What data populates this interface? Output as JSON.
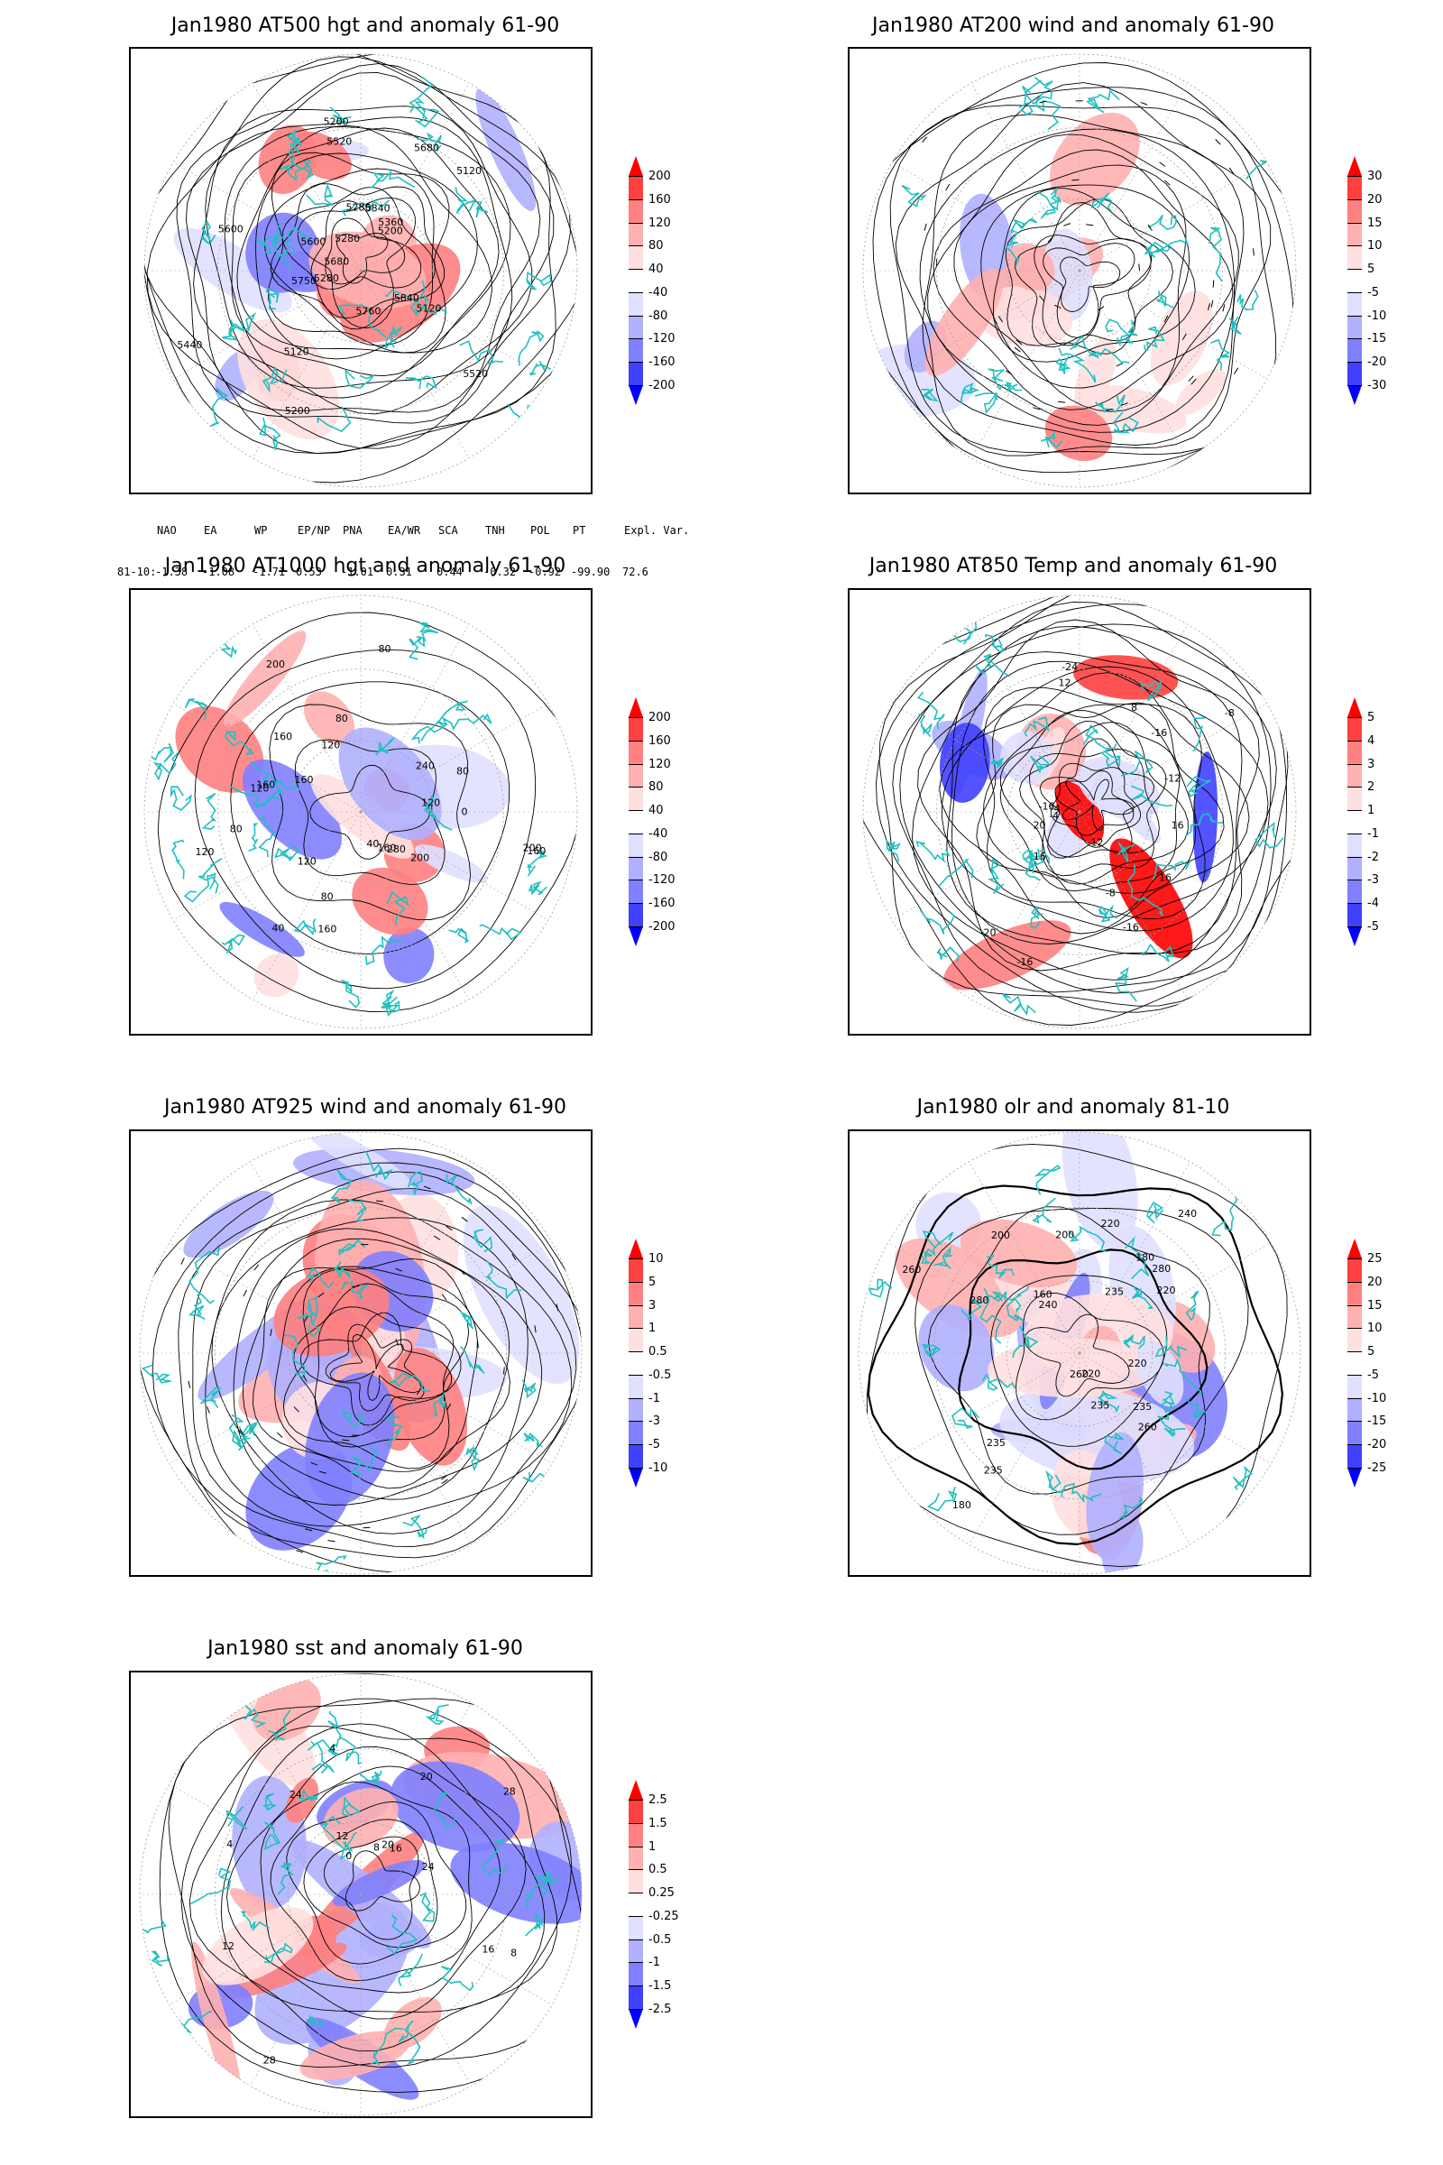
{
  "panels": [
    {
      "title": "Jan1980 AT500 hgt and anomaly 61-90",
      "colorbar": [
        "200",
        "160",
        "120",
        "80",
        "40",
        "-40",
        "-80",
        "-120",
        "-160",
        "-200"
      ],
      "contour_labels": [
        "5840",
        "5750",
        "5680",
        "5600",
        "5520",
        "5280",
        "5200",
        "5120",
        "5280",
        "5200",
        "5120",
        "5120",
        "5200",
        "5280",
        "5360",
        "5440",
        "5520",
        "5600",
        "5680",
        "5760",
        "5840"
      ]
    },
    {
      "title": "Jan1980 AT200 wind and anomaly 61-90",
      "colorbar": [
        "30",
        "20",
        "15",
        "10",
        "5",
        "-5",
        "-10",
        "-15",
        "-20",
        "-30"
      ],
      "contour_labels": []
    },
    {
      "title": "Jan1980 AT1000 hgt and anomaly 61-90",
      "colorbar": [
        "200",
        "160",
        "120",
        "80",
        "40",
        "-40",
        "-80",
        "-120",
        "-160",
        "-200"
      ],
      "contour_labels": [
        "80",
        "120",
        "40",
        "0",
        "80",
        "200",
        "280",
        "80",
        "120",
        "200",
        "160",
        "240",
        "160",
        "160",
        "40",
        "80",
        "160",
        "200",
        "120",
        "160",
        "120",
        "120",
        "160",
        "80"
      ]
    },
    {
      "title": "Jan1980 AT850 Temp and anomaly 61-90",
      "colorbar": [
        "5",
        "4",
        "3",
        "2",
        "1",
        "-1",
        "-2",
        "-3",
        "-4",
        "-5"
      ],
      "contour_labels": [
        "-16",
        "-8",
        "-12",
        "-4",
        "-16",
        "-24",
        "-20",
        "-12",
        "-16",
        "-8",
        "-4",
        "8",
        "16",
        "12",
        "16",
        "-16",
        "16",
        "20"
      ]
    },
    {
      "title": "Jan1980 AT925 wind and anomaly 61-90",
      "colorbar": [
        "10",
        "5",
        "3",
        "1",
        "0.5",
        "-0.5",
        "-1",
        "-3",
        "-5",
        "-10"
      ],
      "contour_labels": []
    },
    {
      "title": "Jan1980 olr and anomaly 81-10",
      "colorbar": [
        "25",
        "20",
        "15",
        "10",
        "5",
        "-5",
        "-10",
        "-15",
        "-20",
        "-25"
      ],
      "contour_labels": [
        "235",
        "220",
        "280",
        "260",
        "240",
        "235",
        "220",
        "200",
        "180",
        "160",
        "180",
        "200",
        "220",
        "240",
        "235",
        "260",
        "280",
        "260",
        "220",
        "235",
        "235"
      ]
    },
    {
      "title": "Jan1980 sst and anomaly 61-90",
      "colorbar": [
        "2.5",
        "1.5",
        "1",
        "0.5",
        "0.25",
        "-0.25",
        "-0.5",
        "-1",
        "-1.5",
        "-2.5"
      ],
      "contour_labels": [
        "28",
        "24",
        "20",
        "16",
        "12",
        "8",
        "4",
        "0",
        "24",
        "12",
        "8",
        "4",
        "20",
        "16",
        "28"
      ]
    }
  ],
  "teleconnection": {
    "headers": [
      "NAO",
      "EA",
      "WP",
      "EP/NP",
      "PNA",
      "EA/WR",
      "SCA",
      "TNH",
      "POL",
      "PT",
      "Expl. Var."
    ],
    "row_label": "81-10:",
    "values": [
      "-1.38",
      "-1.08",
      "-1.71",
      "0.53",
      "-1.01",
      "0.31",
      "0.44",
      "-0.32",
      "-0.92",
      "-99.90",
      "72.6"
    ]
  },
  "colors": {
    "contour": "#000000",
    "coast": "#20c0c0",
    "grid": "#a0a0a0",
    "pos": [
      "#ffe0e0",
      "#ffb0b0",
      "#ff8080",
      "#ff4040",
      "#ff0000"
    ],
    "neg": [
      "#e0e0ff",
      "#b0b0ff",
      "#8080ff",
      "#4040ff",
      "#0000ff"
    ]
  }
}
